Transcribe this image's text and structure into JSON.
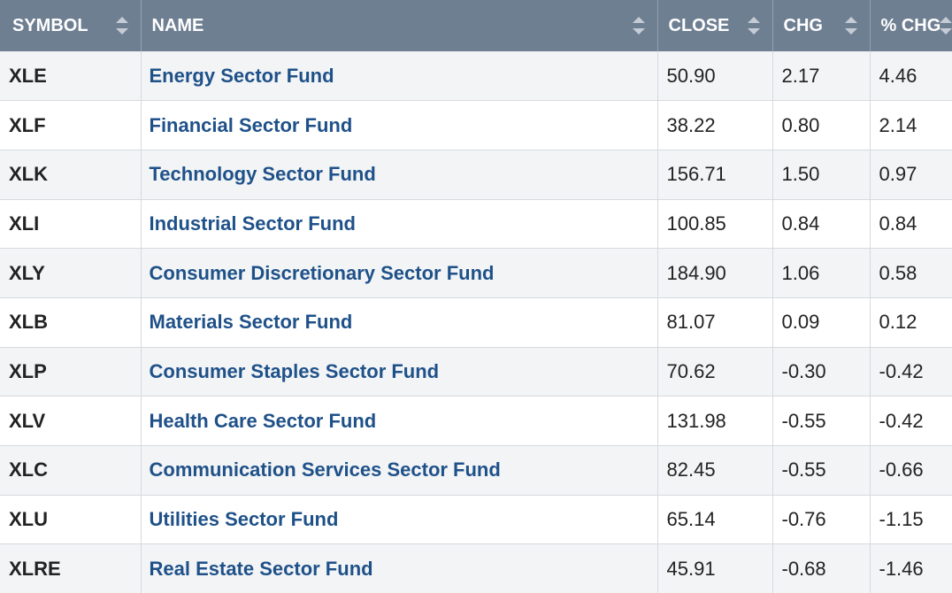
{
  "table": {
    "headers": {
      "symbol": "SYMBOL",
      "name": "NAME",
      "close": "CLOSE",
      "chg": "CHG",
      "pct_chg": "% CHG"
    },
    "rows": [
      {
        "symbol": "XLE",
        "name": "Energy Sector Fund",
        "close": "50.90",
        "chg": "2.17",
        "pct_chg": "4.46"
      },
      {
        "symbol": "XLF",
        "name": "Financial Sector Fund",
        "close": "38.22",
        "chg": "0.80",
        "pct_chg": "2.14"
      },
      {
        "symbol": "XLK",
        "name": "Technology Sector Fund",
        "close": "156.71",
        "chg": "1.50",
        "pct_chg": "0.97"
      },
      {
        "symbol": "XLI",
        "name": "Industrial Sector Fund",
        "close": "100.85",
        "chg": "0.84",
        "pct_chg": "0.84"
      },
      {
        "symbol": "XLY",
        "name": "Consumer Discretionary Sector Fund",
        "close": "184.90",
        "chg": "1.06",
        "pct_chg": "0.58"
      },
      {
        "symbol": "XLB",
        "name": "Materials Sector Fund",
        "close": "81.07",
        "chg": "0.09",
        "pct_chg": "0.12"
      },
      {
        "symbol": "XLP",
        "name": "Consumer Staples Sector Fund",
        "close": "70.62",
        "chg": "-0.30",
        "pct_chg": "-0.42"
      },
      {
        "symbol": "XLV",
        "name": "Health Care Sector Fund",
        "close": "131.98",
        "chg": "-0.55",
        "pct_chg": "-0.42"
      },
      {
        "symbol": "XLC",
        "name": "Communication Services Sector Fund",
        "close": "82.45",
        "chg": "-0.55",
        "pct_chg": "-0.66"
      },
      {
        "symbol": "XLU",
        "name": "Utilities Sector Fund",
        "close": "65.14",
        "chg": "-0.76",
        "pct_chg": "-1.15"
      },
      {
        "symbol": "XLRE",
        "name": "Real Estate Sector Fund",
        "close": "45.91",
        "chg": "-0.68",
        "pct_chg": "-1.46"
      }
    ]
  },
  "colors": {
    "header_bg": "#6f7f92",
    "link": "#1f5189",
    "row_alt": "#f2f4f6"
  },
  "icons": {
    "sort": "sort-icon"
  }
}
